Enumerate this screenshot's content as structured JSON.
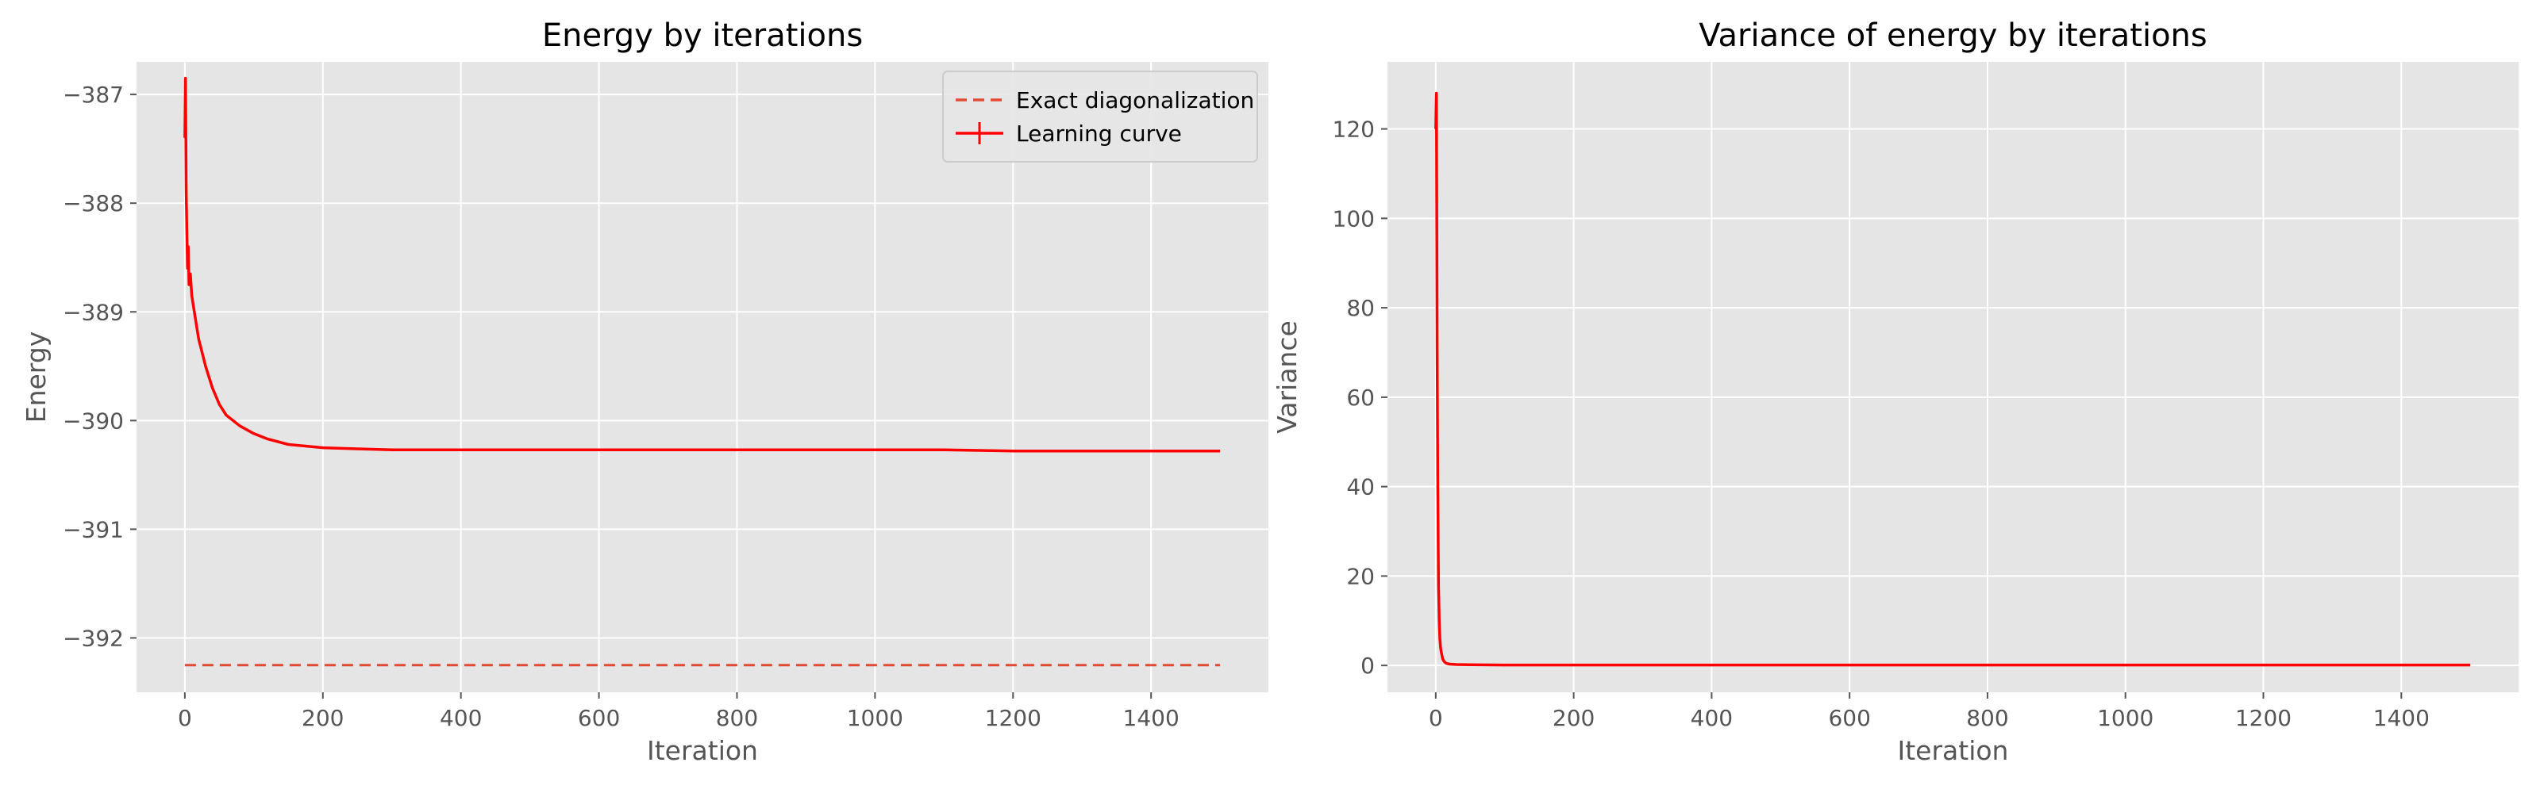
{
  "chart_data": [
    {
      "type": "line",
      "title": "Energy by iterations",
      "xlabel": "Iteration",
      "ylabel": "Energy",
      "xlim": [
        -70,
        1570
      ],
      "ylim": [
        -392.5,
        -386.7
      ],
      "xticks": [
        0,
        200,
        400,
        600,
        800,
        1000,
        1200,
        1400
      ],
      "yticks": [
        -392,
        -391,
        -390,
        -389,
        -388,
        -387
      ],
      "ytick_labels": [
        "−392",
        "−391",
        "−390",
        "−389",
        "−388",
        "−387"
      ],
      "grid": true,
      "legend": "top-right",
      "series": [
        {
          "name": "Exact diagonalization",
          "style": "dashed",
          "color": "#E24A33",
          "x": [
            0,
            1500
          ],
          "y": [
            -392.25,
            -392.25
          ]
        },
        {
          "name": "Learning curve",
          "style": "solid-errorbar",
          "color": "#FF0000",
          "x": [
            0,
            1,
            2,
            3,
            4,
            5,
            6,
            8,
            10,
            15,
            20,
            30,
            40,
            50,
            60,
            80,
            100,
            120,
            150,
            200,
            250,
            300,
            400,
            500,
            600,
            700,
            800,
            900,
            1000,
            1100,
            1200,
            1300,
            1400,
            1500
          ],
          "y": [
            -387.4,
            -386.85,
            -387.9,
            -388.3,
            -388.6,
            -388.4,
            -388.75,
            -388.65,
            -388.85,
            -389.05,
            -389.25,
            -389.5,
            -389.7,
            -389.85,
            -389.95,
            -390.05,
            -390.12,
            -390.17,
            -390.22,
            -390.25,
            -390.26,
            -390.27,
            -390.27,
            -390.27,
            -390.27,
            -390.27,
            -390.27,
            -390.27,
            -390.27,
            -390.27,
            -390.28,
            -390.28,
            -390.28,
            -390.28
          ]
        }
      ]
    },
    {
      "type": "line",
      "title": "Variance of energy by iterations",
      "xlabel": "Iteration",
      "ylabel": "Variance",
      "xlim": [
        -70,
        1570
      ],
      "ylim": [
        -6,
        135
      ],
      "xticks": [
        0,
        200,
        400,
        600,
        800,
        1000,
        1200,
        1400
      ],
      "yticks": [
        0,
        20,
        40,
        60,
        80,
        100,
        120
      ],
      "ytick_labels": [
        "0",
        "20",
        "40",
        "60",
        "80",
        "100",
        "120"
      ],
      "grid": true,
      "series": [
        {
          "name": "",
          "style": "solid",
          "color": "#FF0000",
          "x": [
            0,
            1,
            2,
            3,
            4,
            5,
            6,
            7,
            8,
            10,
            12,
            15,
            20,
            30,
            50,
            100,
            200,
            400,
            600,
            800,
            1000,
            1200,
            1400,
            1500
          ],
          "y": [
            120,
            128,
            70,
            40,
            18,
            10,
            6,
            4,
            3,
            1.5,
            0.9,
            0.5,
            0.3,
            0.2,
            0.15,
            0.1,
            0.1,
            0.1,
            0.1,
            0.1,
            0.1,
            0.1,
            0.1,
            0.1
          ]
        }
      ]
    }
  ]
}
